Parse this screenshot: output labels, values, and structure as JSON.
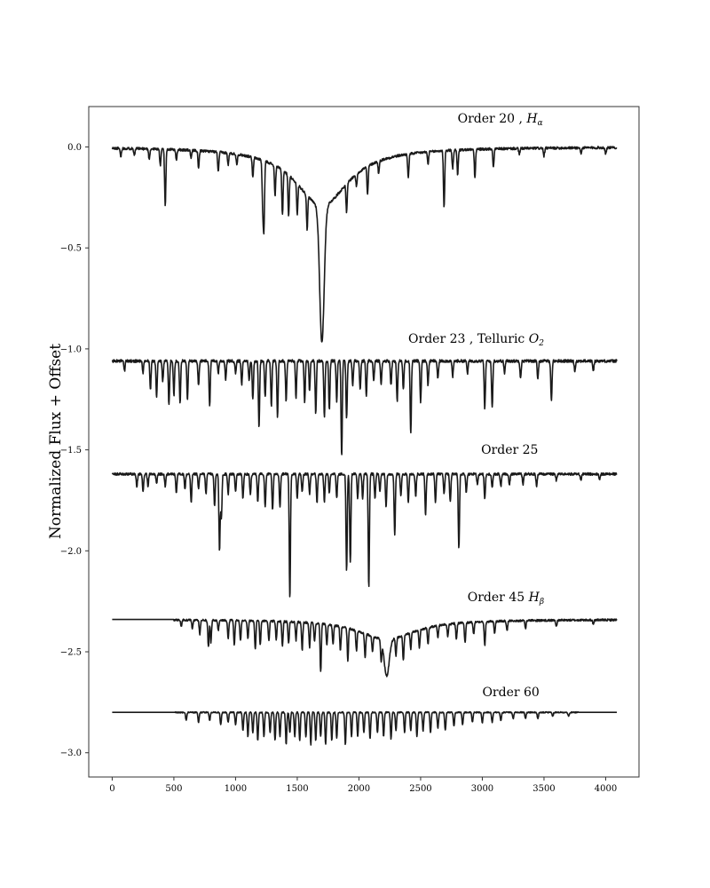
{
  "chart_data": {
    "type": "line",
    "title": "",
    "xlabel": "",
    "ylabel": "Normalized Flux + Offset",
    "xlim": [
      -190,
      4270
    ],
    "ylim": [
      -3.12,
      0.2
    ],
    "xticks": [
      0,
      500,
      1000,
      1500,
      2000,
      2500,
      3000,
      3500,
      4000
    ],
    "xtick_labels": [
      "0",
      "500",
      "1000",
      "1500",
      "2000",
      "2500",
      "3000",
      "3500",
      "4000"
    ],
    "yticks": [
      0.0,
      -0.5,
      -1.0,
      -1.5,
      -2.0,
      -2.5,
      -3.0
    ],
    "ytick_labels": [
      "0.0",
      "−0.5",
      "−1.0",
      "−1.5",
      "−2.0",
      "−2.5",
      "−3.0"
    ],
    "grid": false,
    "legend": "none",
    "line_color": "#1a1a1a",
    "series": [
      {
        "name": "Order 20",
        "label_prefix": "Order 20 , ",
        "label_symbol": "H",
        "label_subscript": "α",
        "label_anchor": [
          2800,
          0.12
        ],
        "baseline": 0.0,
        "noise": 0.006,
        "seed": 11,
        "broad": {
          "center": 1700,
          "depth": 0.97,
          "core_width": 18,
          "wing_width": 260,
          "wing_frac": 0.3
        },
        "lines": [
          [
            70,
            0.04
          ],
          [
            180,
            0.03
          ],
          [
            300,
            0.05
          ],
          [
            390,
            0.08
          ],
          [
            430,
            0.28
          ],
          [
            520,
            0.05
          ],
          [
            640,
            0.04
          ],
          [
            700,
            0.09
          ],
          [
            860,
            0.1
          ],
          [
            940,
            0.06
          ],
          [
            1010,
            0.05
          ],
          [
            1140,
            0.1
          ],
          [
            1220,
            0.22
          ],
          [
            1230,
            0.33
          ],
          [
            1320,
            0.15
          ],
          [
            1380,
            0.22
          ],
          [
            1430,
            0.2
          ],
          [
            1500,
            0.15
          ],
          [
            1580,
            0.17
          ],
          [
            1900,
            0.14
          ],
          [
            1980,
            0.06
          ],
          [
            2070,
            0.14
          ],
          [
            2160,
            0.06
          ],
          [
            2400,
            0.12
          ],
          [
            2560,
            0.06
          ],
          [
            2690,
            0.28
          ],
          [
            2760,
            0.09
          ],
          [
            2800,
            0.12
          ],
          [
            2940,
            0.14
          ],
          [
            3090,
            0.09
          ],
          [
            3300,
            0.03
          ],
          [
            3500,
            0.04
          ],
          [
            3800,
            0.03
          ],
          [
            4000,
            0.03
          ]
        ]
      },
      {
        "name": "Order 23",
        "label_prefix": "Order 23 , Telluric ",
        "label_symbol": "O",
        "label_subscript": "2",
        "label_anchor": [
          2400,
          -0.97
        ],
        "baseline": -1.06,
        "noise": 0.007,
        "seed": 23,
        "lines": [
          [
            100,
            0.05
          ],
          [
            250,
            0.06
          ],
          [
            310,
            0.14
          ],
          [
            360,
            0.18
          ],
          [
            410,
            0.1
          ],
          [
            460,
            0.22
          ],
          [
            500,
            0.17
          ],
          [
            550,
            0.21
          ],
          [
            610,
            0.19
          ],
          [
            700,
            0.12
          ],
          [
            790,
            0.22
          ],
          [
            860,
            0.06
          ],
          [
            920,
            0.09
          ],
          [
            1000,
            0.06
          ],
          [
            1050,
            0.12
          ],
          [
            1110,
            0.1
          ],
          [
            1140,
            0.19
          ],
          [
            1190,
            0.33
          ],
          [
            1240,
            0.18
          ],
          [
            1290,
            0.22
          ],
          [
            1340,
            0.28
          ],
          [
            1410,
            0.2
          ],
          [
            1490,
            0.18
          ],
          [
            1560,
            0.21
          ],
          [
            1600,
            0.15
          ],
          [
            1650,
            0.26
          ],
          [
            1720,
            0.28
          ],
          [
            1760,
            0.24
          ],
          [
            1820,
            0.2
          ],
          [
            1860,
            0.47
          ],
          [
            1900,
            0.29
          ],
          [
            1950,
            0.12
          ],
          [
            2010,
            0.14
          ],
          [
            2060,
            0.18
          ],
          [
            2120,
            0.1
          ],
          [
            2180,
            0.12
          ],
          [
            2260,
            0.12
          ],
          [
            2310,
            0.2
          ],
          [
            2360,
            0.14
          ],
          [
            2420,
            0.36
          ],
          [
            2500,
            0.2
          ],
          [
            2560,
            0.12
          ],
          [
            2640,
            0.09
          ],
          [
            2760,
            0.08
          ],
          [
            2880,
            0.06
          ],
          [
            3020,
            0.24
          ],
          [
            3080,
            0.23
          ],
          [
            3180,
            0.06
          ],
          [
            3310,
            0.08
          ],
          [
            3450,
            0.09
          ],
          [
            3560,
            0.2
          ],
          [
            3750,
            0.05
          ],
          [
            3900,
            0.05
          ]
        ]
      },
      {
        "name": "Order 25",
        "label_prefix": "Order 25",
        "label_symbol": "",
        "label_subscript": "",
        "label_anchor": [
          2990,
          -1.52
        ],
        "baseline": -1.62,
        "noise": 0.006,
        "seed": 25,
        "lines": [
          [
            200,
            0.06
          ],
          [
            250,
            0.09
          ],
          [
            290,
            0.06
          ],
          [
            360,
            0.05
          ],
          [
            430,
            0.06
          ],
          [
            520,
            0.09
          ],
          [
            590,
            0.07
          ],
          [
            640,
            0.14
          ],
          [
            700,
            0.07
          ],
          [
            760,
            0.1
          ],
          [
            830,
            0.16
          ],
          [
            870,
            0.38
          ],
          [
            885,
            0.22
          ],
          [
            940,
            0.1
          ],
          [
            1000,
            0.09
          ],
          [
            1060,
            0.12
          ],
          [
            1120,
            0.1
          ],
          [
            1180,
            0.14
          ],
          [
            1240,
            0.16
          ],
          [
            1300,
            0.18
          ],
          [
            1360,
            0.16
          ],
          [
            1440,
            0.62
          ],
          [
            1500,
            0.12
          ],
          [
            1540,
            0.09
          ],
          [
            1600,
            0.1
          ],
          [
            1660,
            0.14
          ],
          [
            1720,
            0.14
          ],
          [
            1760,
            0.09
          ],
          [
            1820,
            0.12
          ],
          [
            1900,
            0.48
          ],
          [
            1930,
            0.44
          ],
          [
            1990,
            0.12
          ],
          [
            2030,
            0.12
          ],
          [
            2080,
            0.56
          ],
          [
            2130,
            0.12
          ],
          [
            2170,
            0.09
          ],
          [
            2220,
            0.16
          ],
          [
            2290,
            0.3
          ],
          [
            2340,
            0.11
          ],
          [
            2400,
            0.14
          ],
          [
            2460,
            0.11
          ],
          [
            2540,
            0.2
          ],
          [
            2620,
            0.14
          ],
          [
            2690,
            0.1
          ],
          [
            2740,
            0.14
          ],
          [
            2810,
            0.37
          ],
          [
            2870,
            0.09
          ],
          [
            2960,
            0.05
          ],
          [
            3020,
            0.12
          ],
          [
            3080,
            0.07
          ],
          [
            3150,
            0.06
          ],
          [
            3220,
            0.05
          ],
          [
            3330,
            0.05
          ],
          [
            3440,
            0.06
          ],
          [
            3600,
            0.03
          ],
          [
            3800,
            0.03
          ],
          [
            3950,
            0.03
          ]
        ]
      },
      {
        "name": "Order 45",
        "label_prefix": "Order 45 ",
        "label_symbol": "H",
        "label_subscript": "β",
        "label_anchor": [
          2880,
          -2.25
        ],
        "baseline": -2.34,
        "noise": 0.005,
        "seed": 45,
        "broad": {
          "center": 2225,
          "depth": 0.28,
          "core_width": 20,
          "wing_width": 280,
          "wing_frac": 0.35
        },
        "start_flat": 500,
        "lines": [
          [
            560,
            0.03
          ],
          [
            650,
            0.04
          ],
          [
            710,
            0.07
          ],
          [
            780,
            0.13
          ],
          [
            800,
            0.11
          ],
          [
            860,
            0.05
          ],
          [
            940,
            0.09
          ],
          [
            990,
            0.12
          ],
          [
            1040,
            0.1
          ],
          [
            1100,
            0.09
          ],
          [
            1160,
            0.14
          ],
          [
            1200,
            0.12
          ],
          [
            1270,
            0.1
          ],
          [
            1330,
            0.09
          ],
          [
            1380,
            0.12
          ],
          [
            1430,
            0.11
          ],
          [
            1490,
            0.09
          ],
          [
            1540,
            0.14
          ],
          [
            1600,
            0.12
          ],
          [
            1640,
            0.09
          ],
          [
            1690,
            0.24
          ],
          [
            1740,
            0.1
          ],
          [
            1790,
            0.09
          ],
          [
            1850,
            0.12
          ],
          [
            1910,
            0.16
          ],
          [
            1980,
            0.1
          ],
          [
            2050,
            0.12
          ],
          [
            2110,
            0.08
          ],
          [
            2180,
            0.1
          ],
          [
            2300,
            0.09
          ],
          [
            2360,
            0.12
          ],
          [
            2420,
            0.08
          ],
          [
            2490,
            0.09
          ],
          [
            2560,
            0.08
          ],
          [
            2640,
            0.06
          ],
          [
            2720,
            0.06
          ],
          [
            2790,
            0.08
          ],
          [
            2860,
            0.1
          ],
          [
            2930,
            0.06
          ],
          [
            3020,
            0.12
          ],
          [
            3100,
            0.06
          ],
          [
            3200,
            0.05
          ],
          [
            3350,
            0.04
          ],
          [
            3600,
            0.03
          ],
          [
            3900,
            0.02
          ]
        ]
      },
      {
        "name": "Order 60",
        "label_prefix": "Order 60",
        "label_symbol": "",
        "label_subscript": "",
        "label_anchor": [
          3000,
          -2.72
        ],
        "baseline": -2.8,
        "noise": 0.003,
        "seed": 60,
        "start_flat": 510,
        "end_flat": 3780,
        "lines": [
          [
            600,
            0.04
          ],
          [
            700,
            0.05
          ],
          [
            790,
            0.04
          ],
          [
            880,
            0.06
          ],
          [
            940,
            0.05
          ],
          [
            1000,
            0.06
          ],
          [
            1060,
            0.09
          ],
          [
            1100,
            0.12
          ],
          [
            1140,
            0.1
          ],
          [
            1180,
            0.14
          ],
          [
            1230,
            0.12
          ],
          [
            1280,
            0.1
          ],
          [
            1320,
            0.14
          ],
          [
            1360,
            0.12
          ],
          [
            1410,
            0.16
          ],
          [
            1440,
            0.1
          ],
          [
            1480,
            0.12
          ],
          [
            1520,
            0.14
          ],
          [
            1570,
            0.12
          ],
          [
            1610,
            0.16
          ],
          [
            1650,
            0.14
          ],
          [
            1690,
            0.12
          ],
          [
            1730,
            0.16
          ],
          [
            1780,
            0.14
          ],
          [
            1820,
            0.13
          ],
          [
            1890,
            0.16
          ],
          [
            1940,
            0.12
          ],
          [
            1990,
            0.12
          ],
          [
            2040,
            0.1
          ],
          [
            2090,
            0.13
          ],
          [
            2150,
            0.1
          ],
          [
            2200,
            0.12
          ],
          [
            2260,
            0.13
          ],
          [
            2300,
            0.09
          ],
          [
            2370,
            0.1
          ],
          [
            2420,
            0.09
          ],
          [
            2470,
            0.12
          ],
          [
            2520,
            0.09
          ],
          [
            2580,
            0.1
          ],
          [
            2640,
            0.08
          ],
          [
            2700,
            0.09
          ],
          [
            2770,
            0.07
          ],
          [
            2840,
            0.06
          ],
          [
            2920,
            0.05
          ],
          [
            3000,
            0.05
          ],
          [
            3080,
            0.05
          ],
          [
            3150,
            0.04
          ],
          [
            3250,
            0.03
          ],
          [
            3350,
            0.03
          ],
          [
            3450,
            0.03
          ],
          [
            3570,
            0.02
          ],
          [
            3700,
            0.02
          ]
        ]
      }
    ]
  }
}
